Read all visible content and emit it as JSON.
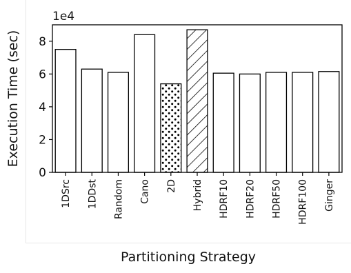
{
  "chart_data": {
    "type": "bar",
    "xlabel": "Partitioning Strategy",
    "ylabel": "Execution Time (sec)",
    "y_scale_label": "1e4",
    "ylim": [
      0,
      90000
    ],
    "y_ticks": [
      0,
      20000,
      40000,
      60000,
      80000
    ],
    "y_tick_labels": [
      "0",
      "2",
      "4",
      "6",
      "8"
    ],
    "categories": [
      "1DSrc",
      "1DDst",
      "Random",
      "Cano",
      "2D",
      "Hybrid",
      "HDRF10",
      "HDRF20",
      "HDRF50",
      "HDRF100",
      "Ginger"
    ],
    "values": [
      75000,
      63000,
      61000,
      84000,
      54000,
      87000,
      60500,
      60000,
      61000,
      61000,
      61500
    ],
    "patterns": [
      "none",
      "none",
      "none",
      "none",
      "dots",
      "hatch",
      "none",
      "none",
      "none",
      "none",
      "none"
    ],
    "grid": false,
    "bar_fill": "#ffffff",
    "bar_edge": "#000000"
  }
}
